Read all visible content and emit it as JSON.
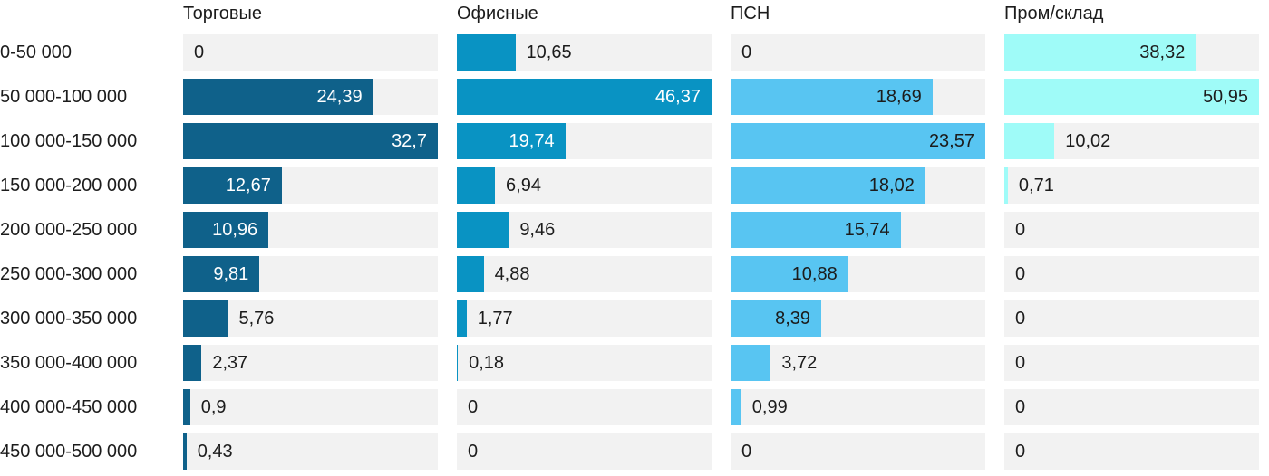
{
  "chart_data": {
    "type": "bar",
    "orientation": "horizontal",
    "scaling": "each series scaled to its own column maximum",
    "value_decimal_separator": ",",
    "grid": false,
    "legend_position": "column-headers-top",
    "categories": [
      "0-50 000",
      "50 000-100 000",
      "100 000-150 000",
      "150 000-200 000",
      "200 000-250 000",
      "250 000-300 000",
      "300 000-350 000",
      "350 000-400 000",
      "400 000-450 000",
      "450 000-500 000"
    ],
    "series": [
      {
        "name": "Торговые",
        "bar_color": "#0f618a",
        "label_color_inside": "#ffffff",
        "values": [
          0,
          24.39,
          32.7,
          12.67,
          10.96,
          9.81,
          5.76,
          2.37,
          0.9,
          0.43
        ]
      },
      {
        "name": "Офисные",
        "bar_color": "#0993c3",
        "label_color_inside": "#ffffff",
        "values": [
          10.65,
          46.37,
          19.74,
          6.94,
          9.46,
          4.88,
          1.77,
          0.18,
          0,
          0
        ]
      },
      {
        "name": "ПСН",
        "bar_color": "#58c5f2",
        "label_color_inside": "#1c1c1c",
        "values": [
          0,
          18.69,
          23.57,
          18.02,
          15.74,
          10.88,
          8.39,
          3.72,
          0.99,
          0
        ]
      },
      {
        "name": "Пром/склад",
        "bar_color": "#9ffbf8",
        "label_color_inside": "#1c1c1c",
        "values": [
          38.32,
          50.95,
          10.02,
          0.71,
          0,
          0,
          0,
          0,
          0,
          0
        ]
      }
    ],
    "track_color": "#f2f2f2",
    "text_color": "#1c1c1c",
    "background_color": "#ffffff"
  }
}
